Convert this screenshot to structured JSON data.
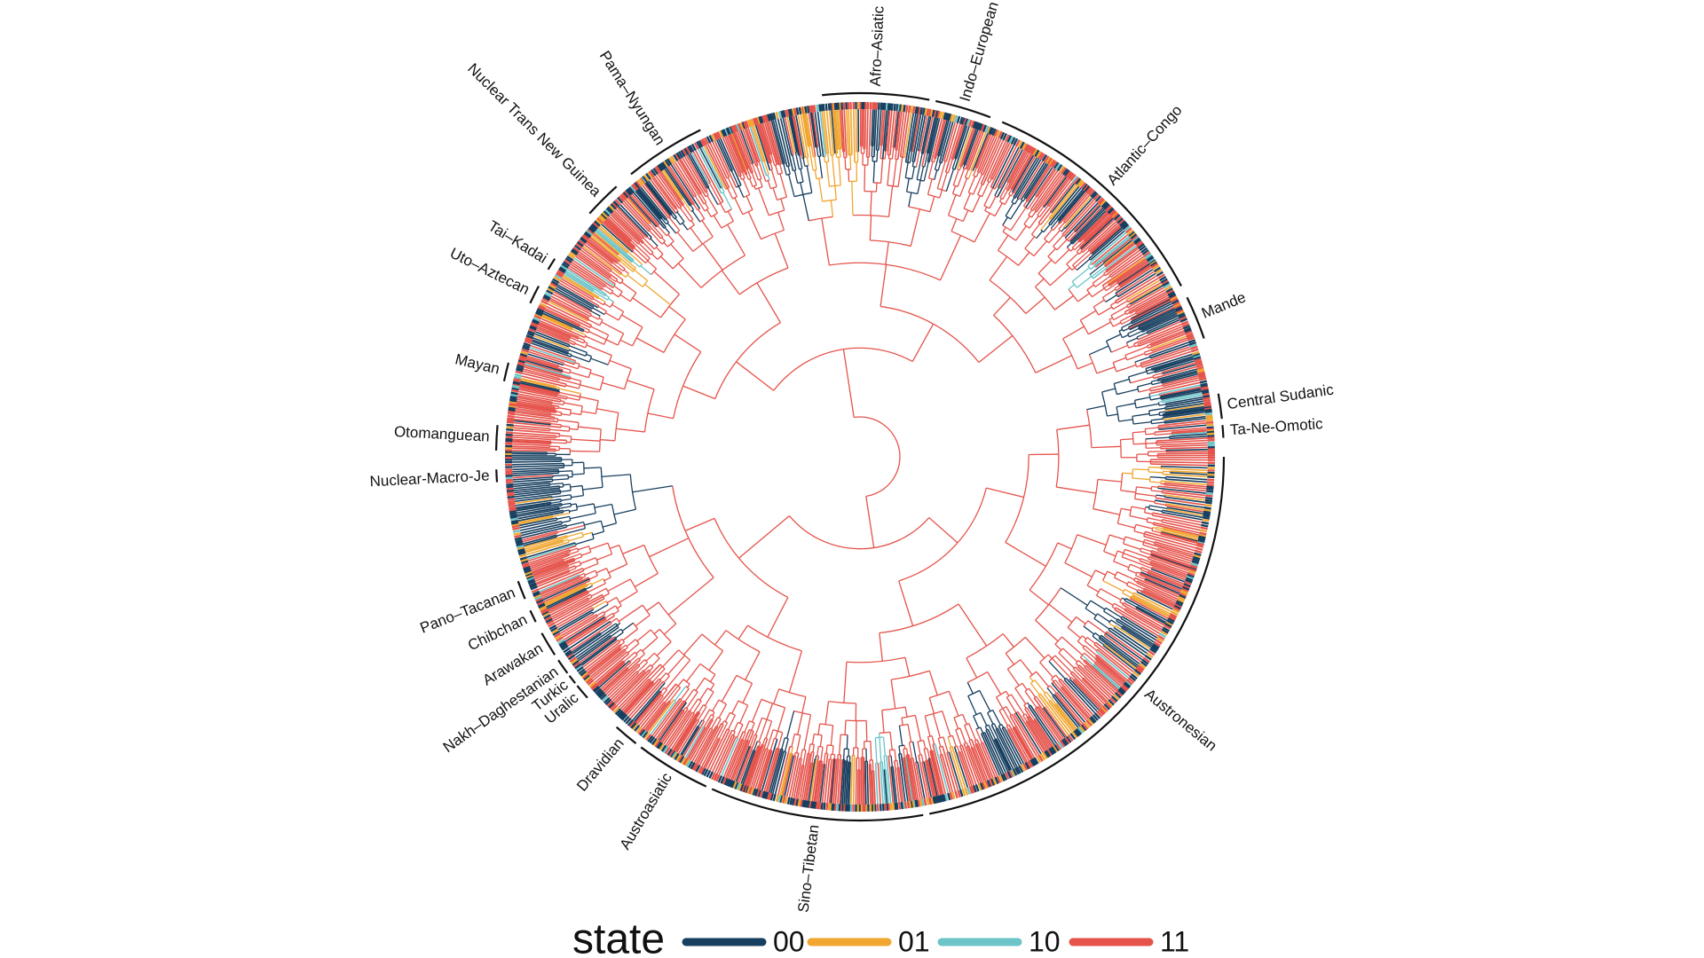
{
  "families": [
    "Afro–Asiatic",
    "Indo–European",
    "Atlantic–Congo",
    "Mande",
    "Central Sudanic",
    "Ta-Ne-Omotic",
    "Austronesian",
    "Sino–Tibetan",
    "Austroasiatic",
    "Dravidian",
    "Uralic",
    "Turkic",
    "Nakh–Daghestanian",
    "Arawakan",
    "Chibchan",
    "Pano–Tacanan",
    "Nuclear-Macro-Je",
    "Otomanguean",
    "Mayan",
    "Uto–Aztecan",
    "Tai–Kadai",
    "Nuclear Trans New Guinea",
    "Pama–Nyungan"
  ],
  "legend": {
    "title": "state",
    "items": [
      {
        "label": "00",
        "color": "#173f5f"
      },
      {
        "label": "01",
        "color": "#f0a630"
      },
      {
        "label": "10",
        "color": "#6cc4c8"
      },
      {
        "label": "11",
        "color": "#e5534b"
      }
    ]
  }
}
